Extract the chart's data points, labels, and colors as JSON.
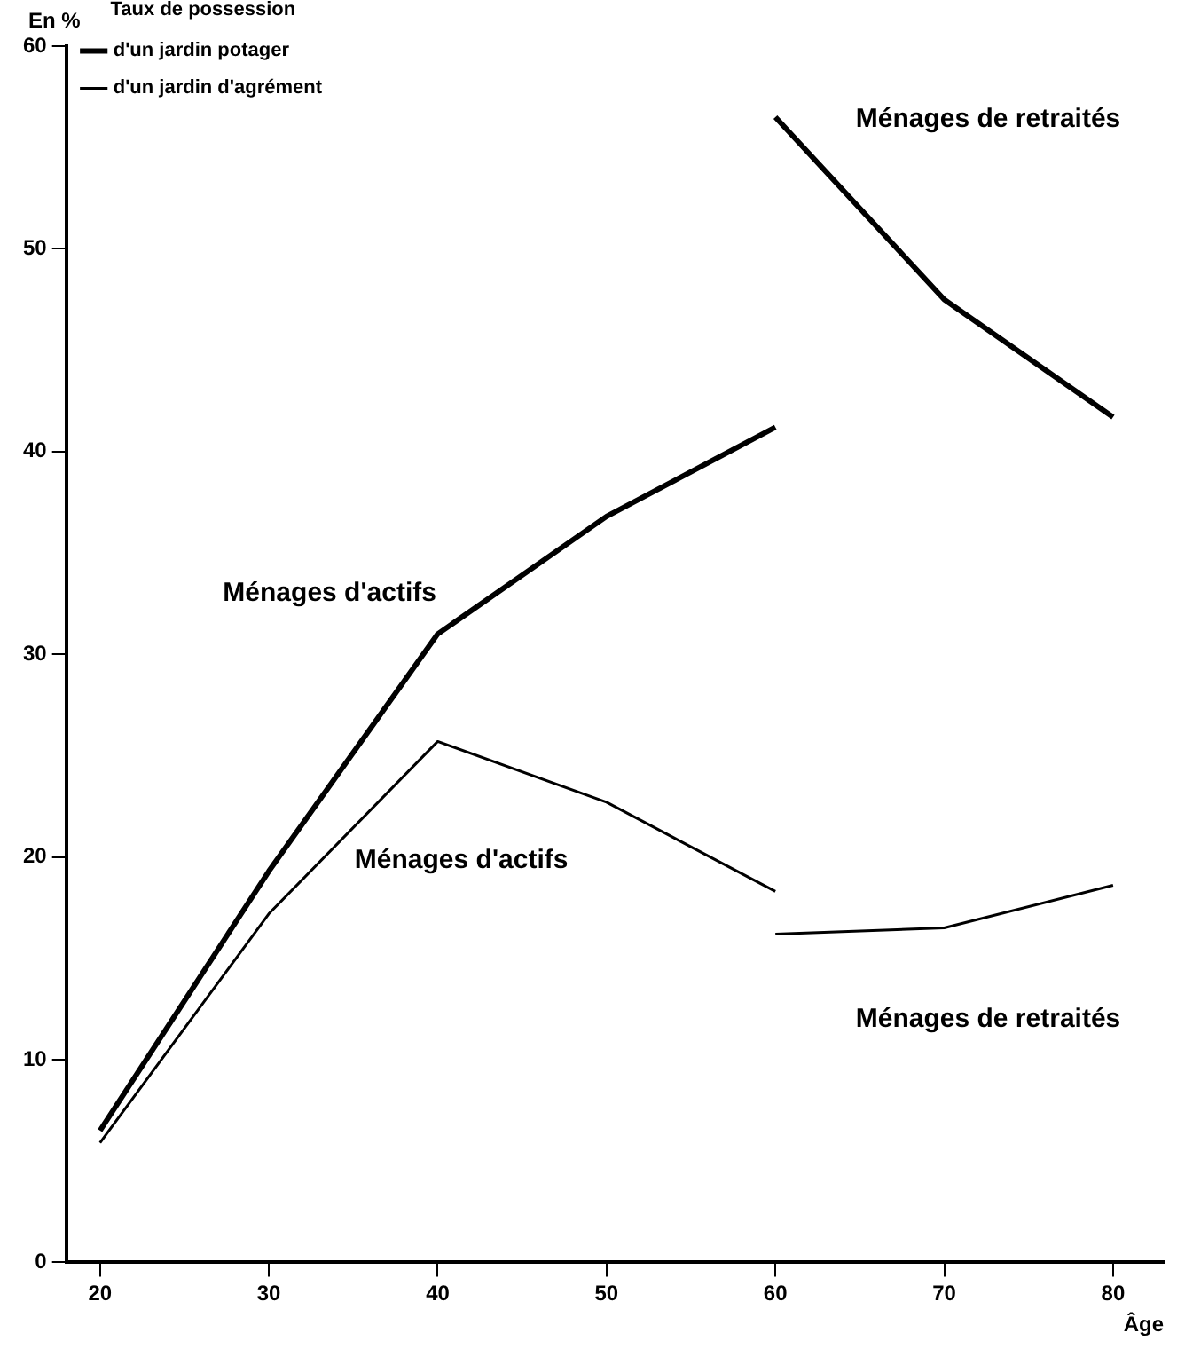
{
  "chart_data": {
    "type": "line",
    "ylabel": "En %",
    "xlabel": "Âge",
    "legend_title": "Taux de possession",
    "legend": "top left",
    "grid": false,
    "marker": "none",
    "line_style": "solid",
    "xlim": [
      18,
      83
    ],
    "xticks": [
      20,
      30,
      40,
      50,
      60,
      70,
      80
    ],
    "ylim": [
      0,
      60
    ],
    "yticks": [
      0,
      10,
      20,
      30,
      40,
      50,
      60
    ],
    "series": [
      {
        "name": "d'un jardin potager",
        "color": "#000000",
        "x": [
          20,
          30,
          40,
          50,
          60
        ],
        "values": [
          6.5,
          19.3,
          31,
          36.8,
          41.2
        ]
      },
      {
        "name": "d'un jardin d'agrément",
        "color": "#000000",
        "x": [
          20,
          30,
          40,
          50,
          60
        ],
        "values": [
          5.9,
          17.2,
          25.7,
          22.7,
          18.3
        ]
      },
      {
        "color": "#000000",
        "x": [
          60,
          70,
          80
        ],
        "values": [
          56.5,
          47.5,
          41.7
        ]
      },
      {
        "color": "#000000",
        "x": [
          60,
          70,
          80
        ],
        "values": [
          16.2,
          16.5,
          18.6
        ]
      }
    ],
    "annotations": [
      "Ménages d'actifs",
      "Ménages d'actifs",
      "Ménages de retraités",
      "Ménages de retraités"
    ]
  }
}
